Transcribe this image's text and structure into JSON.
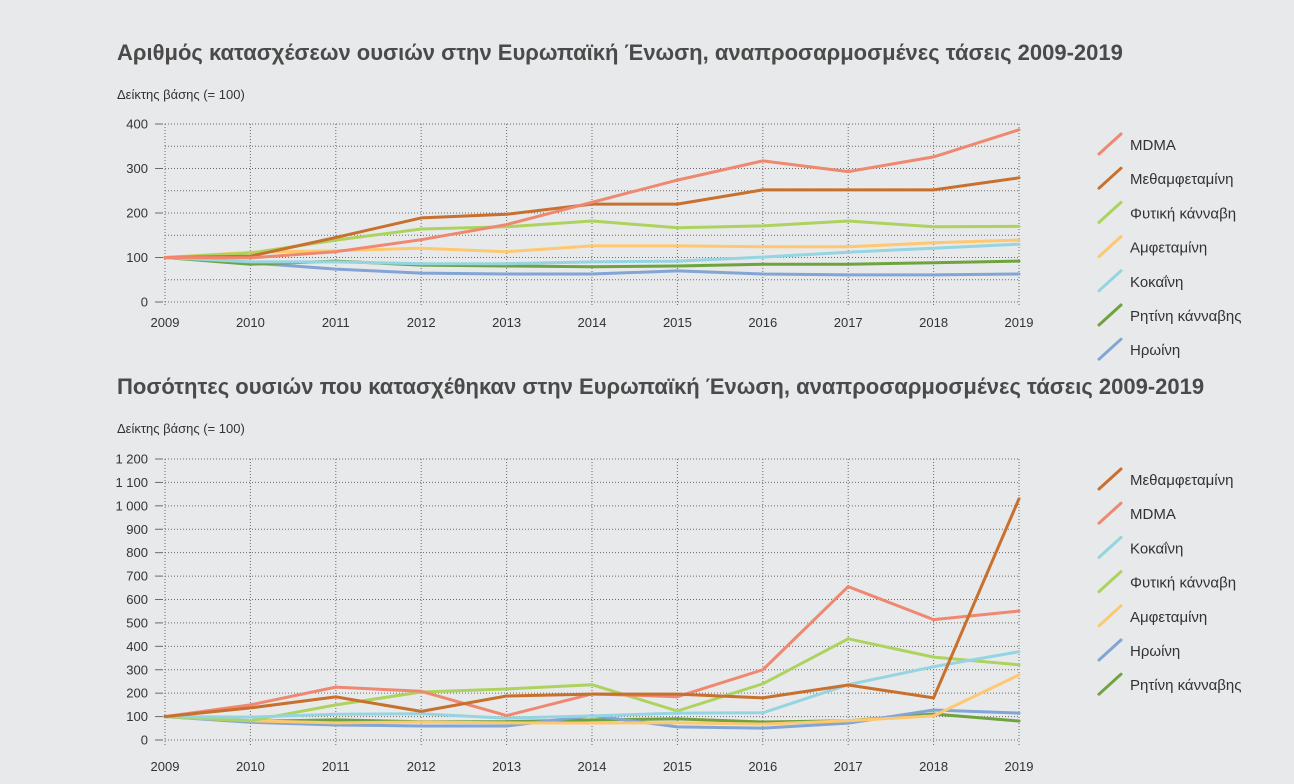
{
  "colors": {
    "background": "#e8e9ea",
    "grid": "#6b6b6b"
  },
  "chart_data": [
    {
      "type": "line",
      "title": "Αριθμός κατασχέσεων ουσιών στην Ευρωπαϊκή Ένωση, αναπροσαρμοσμένες τάσεις 2009-2019",
      "ylabel": "Δείκτης βάσης (= 100)",
      "x": [
        2009,
        2010,
        2011,
        2012,
        2013,
        2014,
        2015,
        2016,
        2017,
        2018,
        2019
      ],
      "ylim": [
        0,
        400
      ],
      "yticks": [
        0,
        100,
        200,
        300,
        400
      ],
      "ytick_labels": [
        "0",
        "100",
        "200",
        "300",
        "400"
      ],
      "grid": true,
      "legend_position": "right",
      "series": [
        {
          "name": "MDMA",
          "color": "#ef8870",
          "values": [
            100,
            99,
            113,
            140,
            174,
            224,
            274,
            317,
            293,
            326,
            387
          ]
        },
        {
          "name": "Μεθαμφεταμίνη",
          "color": "#c8702e",
          "values": [
            100,
            103,
            145,
            189,
            197,
            220,
            220,
            252,
            252,
            252,
            279
          ]
        },
        {
          "name": "Φυτική κάνναβη",
          "color": "#add35f",
          "values": [
            100,
            110,
            139,
            164,
            169,
            182,
            167,
            171,
            182,
            169,
            170
          ]
        },
        {
          "name": "Αμφεταμίνη",
          "color": "#fdc870",
          "values": [
            100,
            112,
            115,
            121,
            113,
            126,
            126,
            124,
            124,
            133,
            139
          ]
        },
        {
          "name": "Κοκαΐνη",
          "color": "#95d4e1",
          "values": [
            100,
            90,
            90,
            86,
            86,
            90,
            92,
            101,
            112,
            121,
            130
          ]
        },
        {
          "name": "Ρητίνη κάνναβης",
          "color": "#6fa33f",
          "values": [
            100,
            85,
            92,
            83,
            81,
            79,
            81,
            85,
            85,
            88,
            92
          ]
        },
        {
          "name": "Ηρωίνη",
          "color": "#82a5d5",
          "values": [
            100,
            88,
            74,
            65,
            63,
            63,
            70,
            63,
            61,
            61,
            63
          ]
        }
      ]
    },
    {
      "type": "line",
      "title": "Ποσότητες ουσιών που κατασχέθηκαν στην Ευρωπαϊκή Ένωση, αναπροσαρμοσμένες τάσεις 2009-2019",
      "ylabel": "Δείκτης βάσης (= 100)",
      "x": [
        2009,
        2010,
        2011,
        2012,
        2013,
        2014,
        2015,
        2016,
        2017,
        2018,
        2019
      ],
      "ylim": [
        0,
        1200
      ],
      "yticks": [
        0,
        100,
        200,
        300,
        400,
        500,
        600,
        700,
        800,
        900,
        1000,
        1100,
        1200
      ],
      "ytick_labels": [
        "0",
        "100",
        "200",
        "300",
        "400",
        "500",
        "600",
        "700",
        "800",
        "900",
        "1 000",
        "1 100",
        "1 200"
      ],
      "grid": true,
      "legend_position": "right",
      "series": [
        {
          "name": "Μεθαμφεταμίνη",
          "color": "#c8702e",
          "values": [
            100,
            137,
            184,
            122,
            188,
            196,
            196,
            180,
            235,
            180,
            1030
          ]
        },
        {
          "name": "MDMA",
          "color": "#ef8870",
          "values": [
            100,
            150,
            226,
            208,
            104,
            197,
            185,
            300,
            655,
            514,
            551
          ]
        },
        {
          "name": "Κοκαΐνη",
          "color": "#95d4e1",
          "values": [
            100,
            98,
            110,
            112,
            93,
            103,
            115,
            116,
            236,
            313,
            377
          ]
        },
        {
          "name": "Φυτική κάνναβη",
          "color": "#add35f",
          "values": [
            100,
            82,
            150,
            205,
            218,
            236,
            124,
            240,
            432,
            354,
            321
          ]
        },
        {
          "name": "Αμφεταμίνη",
          "color": "#fdc870",
          "values": [
            100,
            82,
            73,
            77,
            73,
            72,
            74,
            68,
            82,
            103,
            278
          ]
        },
        {
          "name": "Ηρωίνη",
          "color": "#82a5d5",
          "values": [
            100,
            76,
            64,
            60,
            60,
            104,
            56,
            51,
            72,
            128,
            115
          ]
        },
        {
          "name": "Ρητίνη κάνναβης",
          "color": "#6fa33f",
          "values": [
            100,
            80,
            86,
            78,
            78,
            86,
            90,
            77,
            82,
            111,
            81
          ]
        }
      ]
    }
  ]
}
